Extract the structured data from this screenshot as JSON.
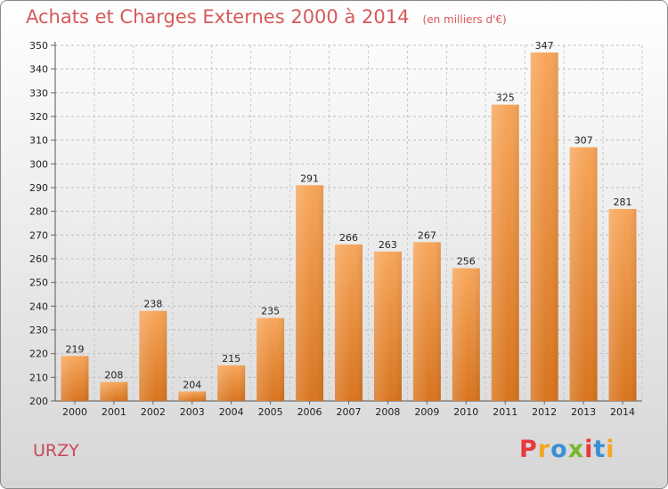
{
  "header": {
    "title": "Achats et Charges Externes 2000 à 2014",
    "subtitle": "(en milliers d'€)"
  },
  "footer": {
    "commune": "URZY",
    "brand": "Proxiti",
    "brand_colors": [
      "#e8383a",
      "#f5a623",
      "#3a8fd6",
      "#7ab52a",
      "#e8383a",
      "#3a8fd6",
      "#f5a623"
    ]
  },
  "chart_data": {
    "type": "bar",
    "title": "Achats et Charges Externes 2000 à 2014",
    "subtitle": "(en milliers d'€)",
    "categories": [
      "2000",
      "2001",
      "2002",
      "2003",
      "2004",
      "2005",
      "2006",
      "2007",
      "2008",
      "2009",
      "2010",
      "2011",
      "2012",
      "2013",
      "2014"
    ],
    "values": [
      219,
      208,
      238,
      204,
      215,
      235,
      291,
      266,
      263,
      267,
      256,
      325,
      347,
      307,
      281
    ],
    "xlabel": "",
    "ylabel": "",
    "ylim": [
      200,
      350
    ],
    "yticks": [
      200,
      210,
      220,
      230,
      240,
      250,
      260,
      270,
      280,
      290,
      300,
      310,
      320,
      330,
      340,
      350
    ],
    "grid": true,
    "bar_color_top": "#f7a65a",
    "bar_color_bottom": "#d8741e"
  }
}
